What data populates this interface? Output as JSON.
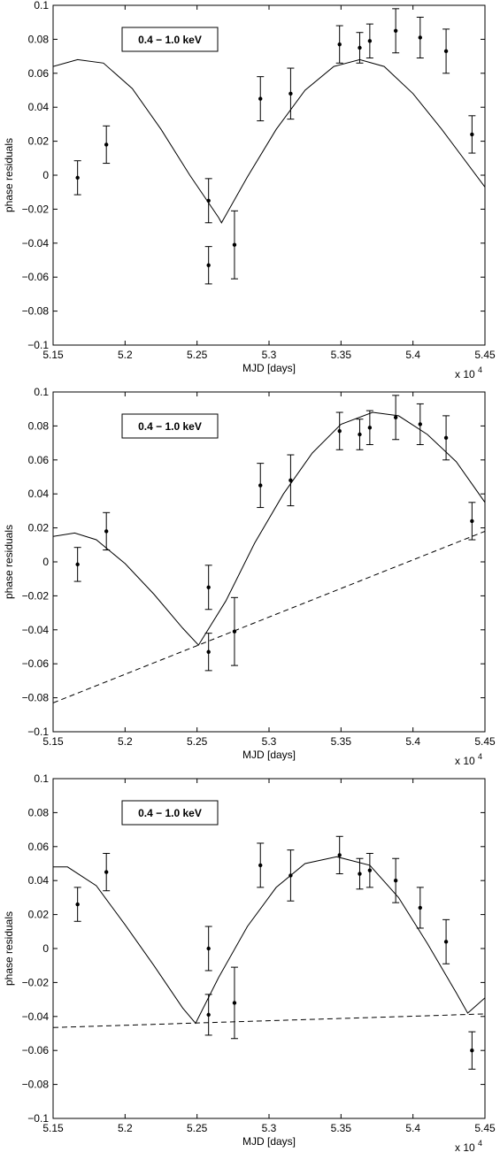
{
  "chart_data": [
    {
      "type": "scatter",
      "xlabel": "MJD [days]",
      "ylabel": "phase residuals",
      "x_multiplier": "x 10",
      "x_multiplier_exp": "4",
      "xlim": [
        5.15,
        5.45
      ],
      "ylim": [
        -0.1,
        0.1
      ],
      "x_ticks": [
        "5.15",
        "5.2",
        "5.25",
        "5.3",
        "5.35",
        "5.4",
        "5.45"
      ],
      "y_ticks": [
        "−0.1",
        "−0.08",
        "−0.06",
        "−0.04",
        "−0.02",
        "0",
        "0.02",
        "0.04",
        "0.06",
        "0.08",
        "0.1"
      ],
      "grid": false,
      "legend": {
        "text": "0.4 − 1.0 keV",
        "placement": "top-left"
      },
      "points": [
        {
          "x": 5.167,
          "y": -0.0015,
          "err": 0.01
        },
        {
          "x": 5.187,
          "y": 0.018,
          "err": 0.011
        },
        {
          "x": 5.258,
          "y": -0.015,
          "err": 0.013
        },
        {
          "x": 5.258,
          "y": -0.053,
          "err": 0.011
        },
        {
          "x": 5.276,
          "y": -0.041,
          "err": 0.02
        },
        {
          "x": 5.294,
          "y": 0.045,
          "err": 0.013
        },
        {
          "x": 5.315,
          "y": 0.048,
          "err": 0.015
        },
        {
          "x": 5.349,
          "y": 0.077,
          "err": 0.011
        },
        {
          "x": 5.363,
          "y": 0.075,
          "err": 0.009
        },
        {
          "x": 5.37,
          "y": 0.079,
          "err": 0.01
        },
        {
          "x": 5.388,
          "y": 0.085,
          "err": 0.013
        },
        {
          "x": 5.405,
          "y": 0.081,
          "err": 0.012
        },
        {
          "x": 5.423,
          "y": 0.073,
          "err": 0.013
        },
        {
          "x": 5.441,
          "y": 0.024,
          "err": 0.011
        }
      ],
      "model_curve": {
        "style": "solid",
        "x": [
          5.15,
          5.167,
          5.185,
          5.205,
          5.225,
          5.245,
          5.265,
          5.267,
          5.285,
          5.305,
          5.325,
          5.345,
          5.363,
          5.38,
          5.4,
          5.42,
          5.45
        ],
        "y": [
          0.064,
          0.068,
          0.066,
          0.051,
          0.027,
          0.0,
          -0.025,
          -0.028,
          -0.001,
          0.027,
          0.05,
          0.064,
          0.068,
          0.064,
          0.048,
          0.027,
          -0.007
        ]
      },
      "trend_line": null
    },
    {
      "type": "scatter",
      "xlabel": "MJD [days]",
      "ylabel": "phase residuals",
      "x_multiplier": "x 10",
      "x_multiplier_exp": "4",
      "xlim": [
        5.15,
        5.45
      ],
      "ylim": [
        -0.1,
        0.1
      ],
      "x_ticks": [
        "5.15",
        "5.2",
        "5.25",
        "5.3",
        "5.35",
        "5.4",
        "5.45"
      ],
      "y_ticks": [
        "−0.1",
        "−0.08",
        "−0.06",
        "−0.04",
        "−0.02",
        "0",
        "0.02",
        "0.04",
        "0.06",
        "0.08",
        "0.1"
      ],
      "grid": false,
      "legend": {
        "text": "0.4 − 1.0 keV",
        "placement": "top-left"
      },
      "points": [
        {
          "x": 5.167,
          "y": -0.0015,
          "err": 0.01
        },
        {
          "x": 5.187,
          "y": 0.018,
          "err": 0.011
        },
        {
          "x": 5.258,
          "y": -0.015,
          "err": 0.013
        },
        {
          "x": 5.258,
          "y": -0.053,
          "err": 0.011
        },
        {
          "x": 5.276,
          "y": -0.041,
          "err": 0.02
        },
        {
          "x": 5.294,
          "y": 0.045,
          "err": 0.013
        },
        {
          "x": 5.315,
          "y": 0.048,
          "err": 0.015
        },
        {
          "x": 5.349,
          "y": 0.077,
          "err": 0.011
        },
        {
          "x": 5.363,
          "y": 0.075,
          "err": 0.009
        },
        {
          "x": 5.37,
          "y": 0.079,
          "err": 0.01
        },
        {
          "x": 5.388,
          "y": 0.085,
          "err": 0.013
        },
        {
          "x": 5.405,
          "y": 0.081,
          "err": 0.012
        },
        {
          "x": 5.423,
          "y": 0.073,
          "err": 0.013
        },
        {
          "x": 5.441,
          "y": 0.024,
          "err": 0.011
        }
      ],
      "model_curve": {
        "style": "solid",
        "x": [
          5.15,
          5.165,
          5.18,
          5.2,
          5.22,
          5.24,
          5.251,
          5.27,
          5.29,
          5.31,
          5.33,
          5.35,
          5.372,
          5.39,
          5.41,
          5.43,
          5.45
        ],
        "y": [
          0.015,
          0.017,
          0.013,
          -0.001,
          -0.019,
          -0.039,
          -0.049,
          -0.023,
          0.011,
          0.04,
          0.064,
          0.081,
          0.088,
          0.086,
          0.075,
          0.059,
          0.035
        ]
      },
      "trend_line": {
        "style": "dashed",
        "x": [
          5.15,
          5.45
        ],
        "y": [
          -0.083,
          0.018
        ]
      }
    },
    {
      "type": "scatter",
      "xlabel": "MJD [days]",
      "ylabel": "phase residuals",
      "x_multiplier": "x 10",
      "x_multiplier_exp": "4",
      "xlim": [
        5.15,
        5.45
      ],
      "ylim": [
        -0.1,
        0.1
      ],
      "x_ticks": [
        "5.15",
        "5.2",
        "5.25",
        "5.3",
        "5.35",
        "5.4",
        "5.45"
      ],
      "y_ticks": [
        "−0.1",
        "−0.08",
        "−0.06",
        "−0.04",
        "−0.02",
        "0",
        "0.02",
        "0.04",
        "0.06",
        "0.08",
        "0.1"
      ],
      "grid": false,
      "legend": {
        "text": "0.4 − 1.0 keV",
        "placement": "top-left"
      },
      "points": [
        {
          "x": 5.167,
          "y": 0.026,
          "err": 0.01
        },
        {
          "x": 5.187,
          "y": 0.045,
          "err": 0.011
        },
        {
          "x": 5.258,
          "y": 0.0,
          "err": 0.013
        },
        {
          "x": 5.258,
          "y": -0.039,
          "err": 0.012
        },
        {
          "x": 5.276,
          "y": -0.032,
          "err": 0.021
        },
        {
          "x": 5.294,
          "y": 0.049,
          "err": 0.013
        },
        {
          "x": 5.315,
          "y": 0.043,
          "err": 0.015
        },
        {
          "x": 5.349,
          "y": 0.055,
          "err": 0.011
        },
        {
          "x": 5.363,
          "y": 0.044,
          "err": 0.009
        },
        {
          "x": 5.37,
          "y": 0.046,
          "err": 0.01
        },
        {
          "x": 5.388,
          "y": 0.04,
          "err": 0.013
        },
        {
          "x": 5.405,
          "y": 0.024,
          "err": 0.012
        },
        {
          "x": 5.423,
          "y": 0.004,
          "err": 0.013
        },
        {
          "x": 5.441,
          "y": -0.06,
          "err": 0.011
        }
      ],
      "model_curve": {
        "style": "solid",
        "x": [
          5.15,
          5.16,
          5.18,
          5.2,
          5.22,
          5.24,
          5.249,
          5.265,
          5.285,
          5.305,
          5.325,
          5.347,
          5.37,
          5.39,
          5.41,
          5.43,
          5.438,
          5.45
        ],
        "y": [
          0.048,
          0.048,
          0.037,
          0.014,
          -0.01,
          -0.035,
          -0.044,
          -0.017,
          0.013,
          0.036,
          0.05,
          0.054,
          0.049,
          0.03,
          0.003,
          -0.026,
          -0.038,
          -0.029
        ]
      },
      "trend_line": {
        "style": "dashed",
        "x": [
          5.15,
          5.45
        ],
        "y": [
          -0.0465,
          -0.0385
        ]
      }
    }
  ]
}
